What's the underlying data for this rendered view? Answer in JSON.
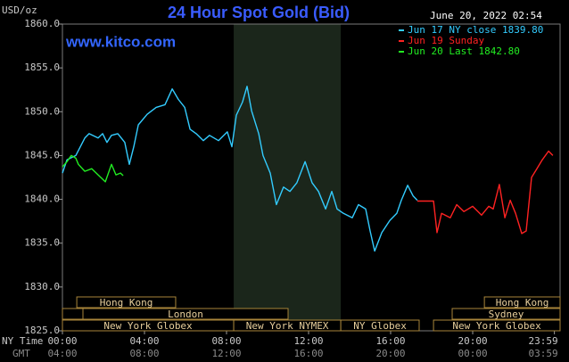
{
  "chart_data": {
    "type": "line",
    "title": "24 Hour Spot Gold (Bid)",
    "subtitle": "www.kitco.com",
    "timestamp": "June 20, 2022 02:54",
    "y_label": "USD/oz",
    "x_label": "NY Time",
    "x2_label": "GMT",
    "xlim": [
      0,
      24.26
    ],
    "ylim": [
      1825,
      1860
    ],
    "xticks": [
      {
        "value": 0,
        "label": "00:00"
      },
      {
        "value": 4,
        "label": "04:00"
      },
      {
        "value": 8,
        "label": "08:00"
      },
      {
        "value": 12,
        "label": "12:00"
      },
      {
        "value": 16,
        "label": "16:00"
      },
      {
        "value": 20,
        "label": "20:00"
      },
      {
        "value": 23.983,
        "label": "23:59"
      }
    ],
    "x2ticklabels": [
      "04:00",
      "08:00",
      "12:00",
      "16:00",
      "20:00",
      "00:00",
      "03:59"
    ],
    "yticks": [
      {
        "value": 1825,
        "label": "1825.0"
      },
      {
        "value": 1830,
        "label": "1830.0"
      },
      {
        "value": 1835,
        "label": "1835.0"
      },
      {
        "value": 1840,
        "label": "1840.0"
      },
      {
        "value": 1845,
        "label": "1845.0"
      },
      {
        "value": 1850,
        "label": "1850.0"
      },
      {
        "value": 1855,
        "label": "1855.0"
      },
      {
        "value": 1860,
        "label": "1860.0"
      }
    ],
    "shaded_span": [
      8.35,
      13.57
    ],
    "sessions": [
      {
        "name": "Hong Kong",
        "start": 0.7,
        "end": 5.52,
        "row": 0
      },
      {
        "name": "Hong Kong",
        "start": 20.57,
        "end": 24.26,
        "row": 0
      },
      {
        "name": null,
        "start": 0,
        "end": 1.0,
        "row": 1
      },
      {
        "name": "London",
        "start": 1.0,
        "end": 11.0,
        "row": 1
      },
      {
        "name": "Sydney",
        "start": 19.0,
        "end": 24.26,
        "row": 1
      },
      {
        "name": "New York Globex",
        "start": 0,
        "end": 8.35,
        "row": 2
      },
      {
        "name": "New York NYMEX",
        "start": 8.35,
        "end": 13.57,
        "row": 2
      },
      {
        "name": "NY Globex",
        "start": 13.57,
        "end": 17.39,
        "row": 2
      },
      {
        "name": "New York Globex",
        "start": 18.09,
        "end": 24.26,
        "row": 2
      }
    ],
    "series": [
      {
        "name": "Jun 17 NY close 1839.80",
        "color": "#33ccff",
        "x": [
          0,
          0.22,
          0.65,
          1.09,
          1.3,
          1.74,
          1.96,
          2.17,
          2.39,
          2.7,
          3.04,
          3.26,
          3.48,
          3.7,
          4.13,
          4.57,
          5.0,
          5.35,
          5.65,
          5.96,
          6.22,
          6.52,
          6.87,
          7.17,
          7.61,
          8.04,
          8.26,
          8.48,
          8.78,
          9.0,
          9.22,
          9.57,
          9.78,
          10.13,
          10.43,
          10.78,
          11.09,
          11.43,
          11.83,
          12.17,
          12.48,
          12.83,
          13.13,
          13.39,
          13.7,
          14.13,
          14.43,
          14.78,
          15.0,
          15.22,
          15.57,
          15.96,
          16.3,
          16.52,
          16.83,
          17.09,
          17.3
        ],
        "values": [
          1843.0,
          1844.5,
          1845.0,
          1847.0,
          1847.5,
          1847.0,
          1847.5,
          1846.5,
          1847.3,
          1847.5,
          1846.5,
          1844.0,
          1846.0,
          1848.5,
          1849.7,
          1850.5,
          1850.8,
          1852.6,
          1851.4,
          1850.5,
          1848.0,
          1847.5,
          1846.7,
          1847.3,
          1846.7,
          1847.7,
          1846.0,
          1849.6,
          1851.1,
          1852.9,
          1850.1,
          1847.5,
          1845.0,
          1843.0,
          1839.4,
          1841.4,
          1840.9,
          1841.9,
          1844.3,
          1841.9,
          1840.9,
          1838.9,
          1840.9,
          1838.9,
          1838.4,
          1837.9,
          1839.4,
          1838.9,
          1836.4,
          1834.1,
          1836.2,
          1837.6,
          1838.4,
          1839.9,
          1841.6,
          1840.4,
          1839.9
        ]
      },
      {
        "name": "Jun 19 Sunday",
        "color": "#ff2222",
        "x": [
          17.3,
          18.09,
          18.26,
          18.48,
          18.91,
          19.22,
          19.57,
          20.0,
          20.43,
          20.78,
          21.0,
          21.3,
          21.57,
          21.83,
          22.09,
          22.39,
          22.61,
          22.87,
          23.13,
          23.39,
          23.7,
          23.91
        ],
        "values": [
          1839.8,
          1839.8,
          1836.2,
          1838.4,
          1837.9,
          1839.4,
          1838.6,
          1839.2,
          1838.2,
          1839.2,
          1838.9,
          1841.7,
          1837.9,
          1839.9,
          1838.4,
          1836.1,
          1836.4,
          1842.5,
          1843.5,
          1844.5,
          1845.5,
          1845.0
        ]
      },
      {
        "name": "Jun 20 Last 1842.80",
        "color": "#22ee22",
        "x": [
          0,
          0.22,
          0.43,
          0.65,
          0.78,
          1.09,
          1.43,
          1.74,
          2.09,
          2.39,
          2.61,
          2.83,
          2.96
        ],
        "values": [
          1843.7,
          1844.3,
          1845.0,
          1844.7,
          1844.0,
          1843.2,
          1843.5,
          1842.8,
          1842.0,
          1844.0,
          1842.8,
          1843.0,
          1842.7
        ]
      }
    ]
  }
}
